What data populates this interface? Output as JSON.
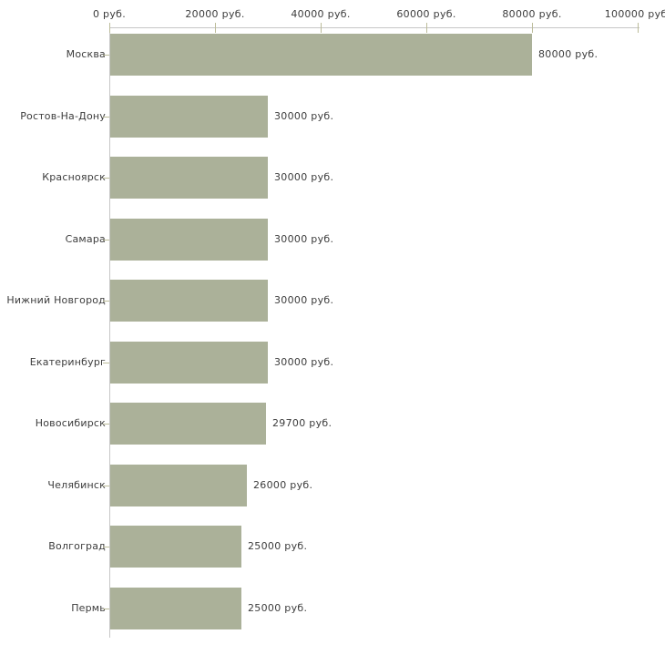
{
  "chart_data": {
    "type": "bar",
    "orientation": "horizontal",
    "title": "",
    "xlabel": "",
    "ylabel": "",
    "unit": "руб.",
    "categories": [
      "Москва",
      "Ростов-На-Дону",
      "Красноярск",
      "Самара",
      "Нижний Новгород",
      "Екатеринбург",
      "Новосибирск",
      "Челябинск",
      "Волгоград",
      "Пермь"
    ],
    "values": [
      80000,
      30000,
      30000,
      30000,
      30000,
      30000,
      29700,
      26000,
      25000,
      25000
    ],
    "value_labels": [
      "80000 руб.",
      "30000 руб.",
      "30000 руб.",
      "30000 руб.",
      "30000 руб.",
      "30000 руб.",
      "29700 руб.",
      "26000 руб.",
      "25000 руб.",
      "25000 руб."
    ],
    "x_axis": {
      "position": "top",
      "min": 0,
      "max": 100000,
      "ticks": [
        {
          "value": 0,
          "label": "0 руб."
        },
        {
          "value": 20000,
          "label": "20000 руб."
        },
        {
          "value": 40000,
          "label": "40000 руб."
        },
        {
          "value": 60000,
          "label": "60000 руб."
        },
        {
          "value": 80000,
          "label": "80000 руб."
        },
        {
          "value": 100000,
          "label": "100000 руб."
        }
      ]
    },
    "legend": "none",
    "grid": false,
    "colors": {
      "bar": "#abb199",
      "axis_line": "#c6c6c6",
      "tick": "#bcbc9a",
      "text": "#3c3c3c",
      "background": "#ffffff"
    }
  }
}
